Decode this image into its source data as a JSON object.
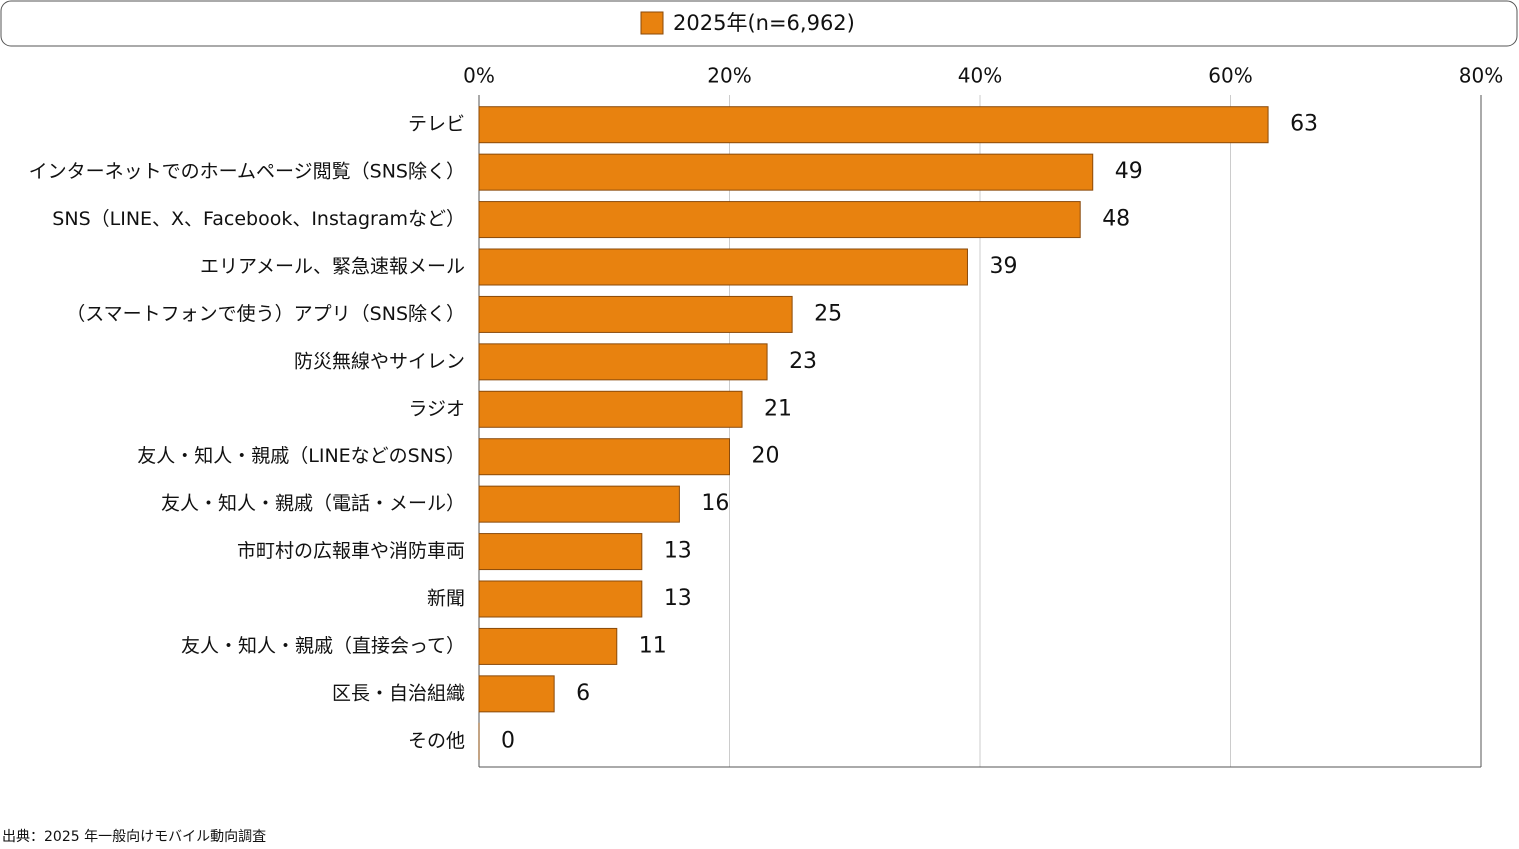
{
  "chart_data": {
    "type": "bar",
    "orientation": "horizontal",
    "legend": "2025年(n=6,962)",
    "categories": [
      "テレビ",
      "インターネットでのホームページ閲覧（SNS除く）",
      "SNS（LINE、X、Facebook、Instagramなど）",
      "エリアメール、緊急速報メール",
      "（スマートフォンで使う）アプリ（SNS除く）",
      "防災無線やサイレン",
      "ラジオ",
      "友人・知人・親戚（LINEなどのSNS）",
      "友人・知人・親戚（電話・メール）",
      "市町村の広報車や消防車両",
      "新聞",
      "友人・知人・親戚（直接会って）",
      "区長・自治組織",
      "その他"
    ],
    "values": [
      63,
      49,
      48,
      39,
      25,
      23,
      21,
      20,
      16,
      13,
      13,
      11,
      6,
      0
    ],
    "color": "#e8820f",
    "xlim": [
      0,
      80
    ],
    "xticks": [
      {
        "value": 0,
        "label": "0%"
      },
      {
        "value": 20,
        "label": "20%"
      },
      {
        "value": 40,
        "label": "40%"
      },
      {
        "value": 60,
        "label": "60%"
      },
      {
        "value": 80,
        "label": "80%"
      }
    ],
    "grid": true,
    "source": "出典：2025 年一般向けモバイル動向調査"
  }
}
